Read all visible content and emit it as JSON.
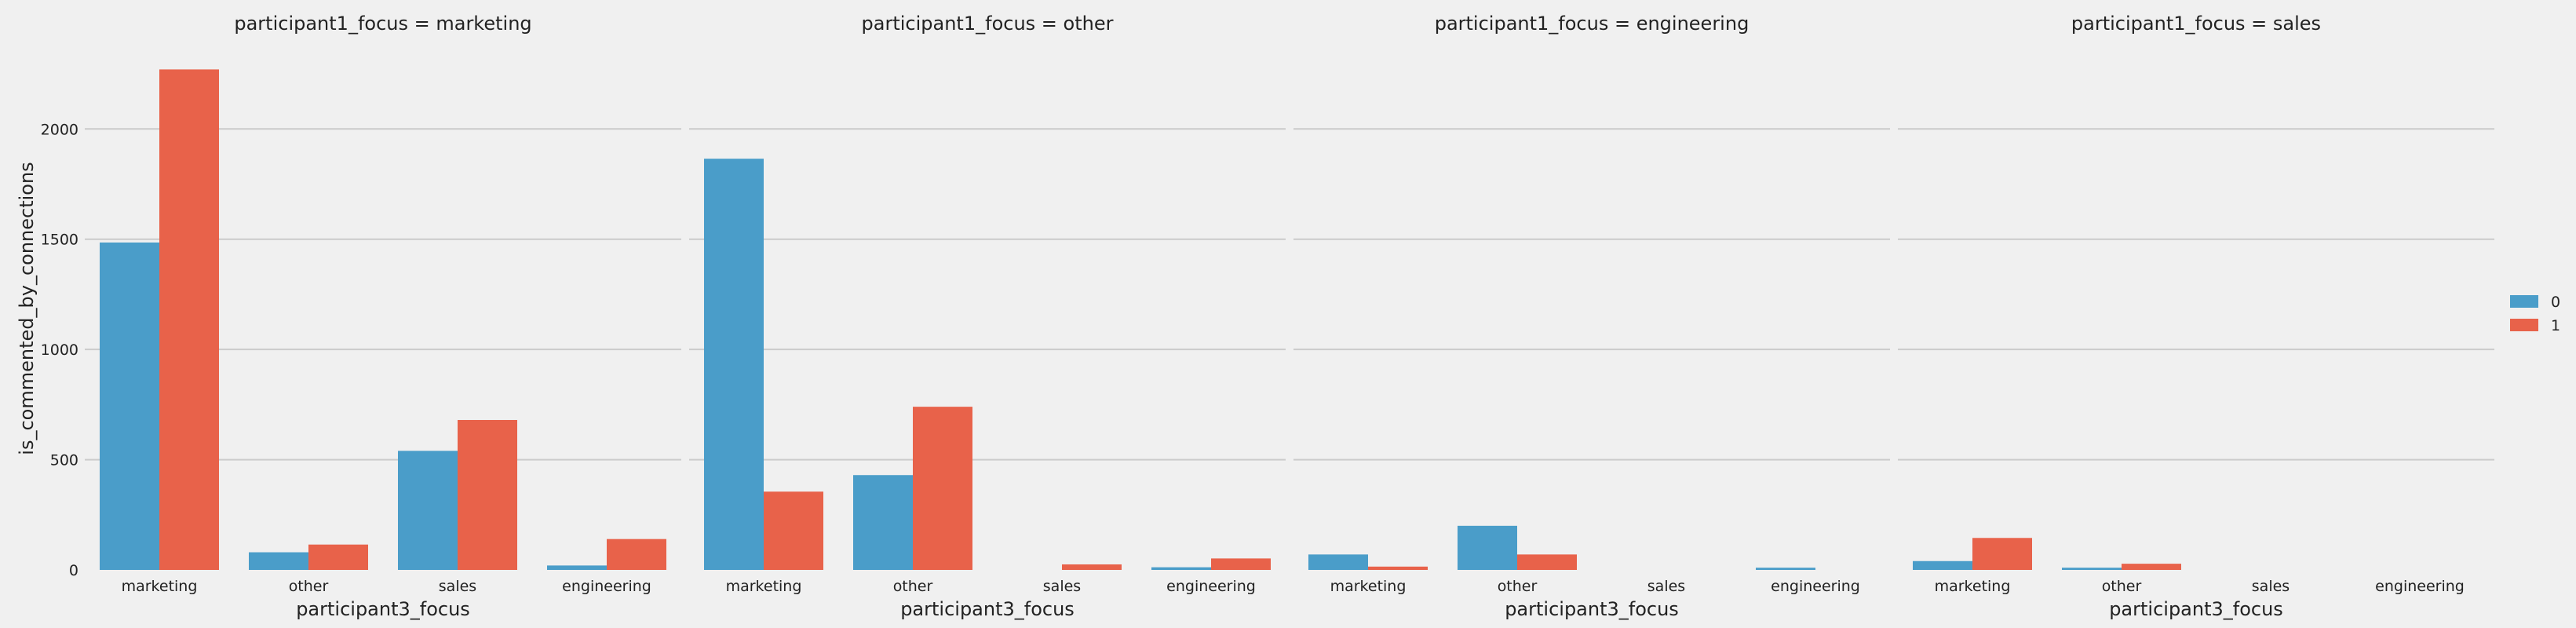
{
  "chart_data": {
    "type": "bar",
    "facet_titles": [
      "participant1_focus = marketing",
      "participant1_focus = other",
      "participant1_focus = engineering",
      "participant1_focus = sales"
    ],
    "categories": [
      "marketing",
      "other",
      "sales",
      "engineering"
    ],
    "xlabel": "participant3_focus",
    "ylabel": "is_commented_by_connections",
    "ylim": [
      0,
      2300
    ],
    "yticks": [
      0,
      500,
      1000,
      1500,
      2000
    ],
    "grid": true,
    "legend_position": "right",
    "series_colors": [
      "#4a9dc9",
      "#e8624a"
    ],
    "facets": [
      {
        "facet": "marketing",
        "series": [
          {
            "name": "0",
            "values": [
              1485,
              80,
              540,
              20
            ]
          },
          {
            "name": "1",
            "values": [
              2270,
              115,
              680,
              140
            ]
          }
        ]
      },
      {
        "facet": "other",
        "series": [
          {
            "name": "0",
            "values": [
              1865,
              430,
              0,
              12
            ]
          },
          {
            "name": "1",
            "values": [
              355,
              740,
              25,
              52
            ]
          }
        ]
      },
      {
        "facet": "engineering",
        "series": [
          {
            "name": "0",
            "values": [
              70,
              200,
              0,
              10
            ]
          },
          {
            "name": "1",
            "values": [
              15,
              70,
              0,
              0
            ]
          }
        ]
      },
      {
        "facet": "sales",
        "series": [
          {
            "name": "0",
            "values": [
              40,
              10,
              0,
              0
            ]
          },
          {
            "name": "1",
            "values": [
              145,
              28,
              0,
              0
            ]
          }
        ]
      }
    ]
  }
}
